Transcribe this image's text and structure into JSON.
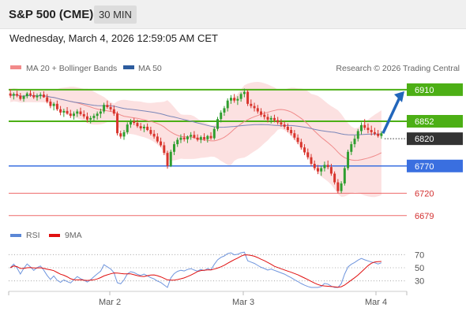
{
  "header": {
    "title": "S&P 500 (CME)",
    "interval": "30 MIN",
    "datetime": "Wednesday, March 4, 2026 12:59:05 AM CET"
  },
  "legend": {
    "ma20": "MA 20 + Bollinger Bands",
    "ma50": "MA 50",
    "credit": "Research © 2026 Trading Central",
    "rsi": "RSI",
    "ma9": "9MA"
  },
  "colors": {
    "green": "#4caf15",
    "blue": "#3a6fe0",
    "red": "#ee6a6a",
    "dark": "#333333",
    "candle_green": "#2e9e2e",
    "candle_red": "#d8342c",
    "arrow": "#2266bb"
  },
  "price_levels": [
    {
      "label": "6910",
      "value": 6910,
      "style": "green-box"
    },
    {
      "label": "6852",
      "value": 6852,
      "style": "green-box"
    },
    {
      "label": "6820",
      "value": 6820,
      "style": "dark-box"
    },
    {
      "label": "6770",
      "value": 6770,
      "style": "blue-box"
    },
    {
      "label": "6720",
      "value": 6720,
      "style": "red-text"
    },
    {
      "label": "6679",
      "value": 6679,
      "style": "red-text"
    }
  ],
  "x_axis": {
    "labels": [
      "Mar 2",
      "Mar 3",
      "Mar 4"
    ]
  },
  "rsi_axis": {
    "labels": [
      "70",
      "50",
      "30"
    ],
    "values": [
      70,
      50,
      30
    ]
  },
  "chart_data": {
    "type": "candlestick",
    "ylim": [
      6670,
      6930
    ],
    "candles": [
      [
        6903,
        6911,
        6895,
        6899
      ],
      [
        6899,
        6905,
        6892,
        6902
      ],
      [
        6902,
        6908,
        6896,
        6899
      ],
      [
        6899,
        6904,
        6890,
        6893
      ],
      [
        6893,
        6900,
        6888,
        6898
      ],
      [
        6898,
        6906,
        6894,
        6903
      ],
      [
        6903,
        6909,
        6897,
        6900
      ],
      [
        6900,
        6906,
        6893,
        6896
      ],
      [
        6896,
        6903,
        6890,
        6899
      ],
      [
        6899,
        6905,
        6893,
        6901
      ],
      [
        6901,
        6907,
        6895,
        6896
      ],
      [
        6896,
        6902,
        6885,
        6888
      ],
      [
        6888,
        6893,
        6876,
        6880
      ],
      [
        6880,
        6887,
        6872,
        6884
      ],
      [
        6884,
        6890,
        6871,
        6874
      ],
      [
        6874,
        6880,
        6863,
        6868
      ],
      [
        6868,
        6875,
        6860,
        6871
      ],
      [
        6871,
        6878,
        6864,
        6866
      ],
      [
        6866,
        6873,
        6858,
        6862
      ],
      [
        6862,
        6870,
        6855,
        6866
      ],
      [
        6866,
        6874,
        6860,
        6870
      ],
      [
        6870,
        6877,
        6862,
        6865
      ],
      [
        6865,
        6872,
        6857,
        6861
      ],
      [
        6861,
        6868,
        6850,
        6855
      ],
      [
        6855,
        6862,
        6848,
        6858
      ],
      [
        6858,
        6866,
        6852,
        6862
      ],
      [
        6862,
        6870,
        6855,
        6866
      ],
      [
        6866,
        6875,
        6858,
        6870
      ],
      [
        6870,
        6886,
        6866,
        6882
      ],
      [
        6882,
        6890,
        6875,
        6878
      ],
      [
        6878,
        6885,
        6870,
        6874
      ],
      [
        6874,
        6881,
        6862,
        6866
      ],
      [
        6866,
        6870,
        6826,
        6830
      ],
      [
        6830,
        6835,
        6820,
        6824
      ],
      [
        6824,
        6836,
        6818,
        6832
      ],
      [
        6832,
        6850,
        6828,
        6846
      ],
      [
        6846,
        6856,
        6840,
        6852
      ],
      [
        6852,
        6858,
        6845,
        6849
      ],
      [
        6849,
        6855,
        6840,
        6843
      ],
      [
        6843,
        6849,
        6835,
        6839
      ],
      [
        6839,
        6846,
        6832,
        6842
      ],
      [
        6842,
        6848,
        6834,
        6836
      ],
      [
        6836,
        6842,
        6826,
        6829
      ],
      [
        6829,
        6836,
        6820,
        6824
      ],
      [
        6824,
        6830,
        6812,
        6815
      ],
      [
        6815,
        6822,
        6805,
        6808
      ],
      [
        6808,
        6814,
        6790,
        6794
      ],
      [
        6794,
        6798,
        6765,
        6770
      ],
      [
        6770,
        6800,
        6768,
        6796
      ],
      [
        6796,
        6815,
        6790,
        6810
      ],
      [
        6810,
        6822,
        6805,
        6818
      ],
      [
        6818,
        6828,
        6812,
        6822
      ],
      [
        6822,
        6830,
        6815,
        6819
      ],
      [
        6819,
        6826,
        6812,
        6824
      ],
      [
        6824,
        6832,
        6818,
        6827
      ],
      [
        6827,
        6834,
        6820,
        6822
      ],
      [
        6822,
        6828,
        6815,
        6818
      ],
      [
        6818,
        6826,
        6812,
        6823
      ],
      [
        6823,
        6830,
        6816,
        6819
      ],
      [
        6819,
        6827,
        6813,
        6825
      ],
      [
        6825,
        6832,
        6818,
        6821
      ],
      [
        6821,
        6842,
        6818,
        6838
      ],
      [
        6838,
        6860,
        6834,
        6856
      ],
      [
        6856,
        6872,
        6850,
        6868
      ],
      [
        6868,
        6880,
        6862,
        6876
      ],
      [
        6876,
        6894,
        6870,
        6890
      ],
      [
        6890,
        6900,
        6884,
        6895
      ],
      [
        6895,
        6902,
        6886,
        6890
      ],
      [
        6890,
        6898,
        6882,
        6893
      ],
      [
        6893,
        6905,
        6888,
        6902
      ],
      [
        6902,
        6912,
        6896,
        6906
      ],
      [
        6906,
        6910,
        6880,
        6884
      ],
      [
        6884,
        6892,
        6876,
        6880
      ],
      [
        6880,
        6886,
        6870,
        6876
      ],
      [
        6876,
        6882,
        6866,
        6870
      ],
      [
        6870,
        6876,
        6860,
        6864
      ],
      [
        6864,
        6870,
        6855,
        6860
      ],
      [
        6860,
        6866,
        6850,
        6855
      ],
      [
        6855,
        6862,
        6848,
        6858
      ],
      [
        6858,
        6864,
        6850,
        6854
      ],
      [
        6854,
        6860,
        6846,
        6850
      ],
      [
        6850,
        6856,
        6842,
        6846
      ],
      [
        6846,
        6852,
        6838,
        6842
      ],
      [
        6842,
        6848,
        6832,
        6836
      ],
      [
        6836,
        6842,
        6826,
        6830
      ],
      [
        6830,
        6836,
        6818,
        6822
      ],
      [
        6822,
        6828,
        6810,
        6814
      ],
      [
        6814,
        6820,
        6800,
        6804
      ],
      [
        6804,
        6810,
        6790,
        6795
      ],
      [
        6795,
        6802,
        6782,
        6786
      ],
      [
        6786,
        6792,
        6770,
        6774
      ],
      [
        6774,
        6780,
        6762,
        6766
      ],
      [
        6766,
        6772,
        6755,
        6760
      ],
      [
        6760,
        6770,
        6752,
        6766
      ],
      [
        6766,
        6778,
        6760,
        6772
      ],
      [
        6772,
        6780,
        6764,
        6768
      ],
      [
        6768,
        6774,
        6752,
        6756
      ],
      [
        6756,
        6760,
        6736,
        6740
      ],
      [
        6740,
        6746,
        6720,
        6724
      ],
      [
        6724,
        6742,
        6720,
        6738
      ],
      [
        6738,
        6770,
        6734,
        6766
      ],
      [
        6766,
        6800,
        6762,
        6796
      ],
      [
        6796,
        6815,
        6790,
        6810
      ],
      [
        6810,
        6826,
        6804,
        6820
      ],
      [
        6820,
        6838,
        6815,
        6834
      ],
      [
        6834,
        6850,
        6828,
        6845
      ],
      [
        6845,
        6856,
        6836,
        6840
      ],
      [
        6840,
        6848,
        6830,
        6836
      ],
      [
        6836,
        6844,
        6826,
        6832
      ],
      [
        6832,
        6840,
        6826,
        6829
      ],
      [
        6829,
        6836,
        6822,
        6825
      ],
      [
        6825,
        6834,
        6820,
        6830
      ]
    ],
    "levels": [
      6910,
      6852,
      6820,
      6770,
      6720,
      6679
    ],
    "rsi_ylim": [
      20,
      80
    ]
  }
}
